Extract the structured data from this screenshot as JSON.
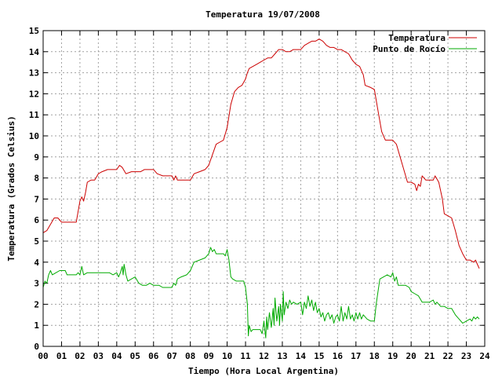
{
  "chart_data": {
    "type": "line",
    "title": "Temperatura 19/07/2008",
    "xlabel": "Tiempo (Hora Local Argentina)",
    "ylabel": "Temperatura (Grados Celsius)",
    "xlim": [
      0,
      24
    ],
    "ylim": [
      0,
      15
    ],
    "x_ticks": [
      "00",
      "01",
      "02",
      "03",
      "04",
      "05",
      "06",
      "07",
      "08",
      "09",
      "10",
      "11",
      "12",
      "13",
      "14",
      "15",
      "16",
      "17",
      "18",
      "19",
      "20",
      "21",
      "22",
      "23",
      "24"
    ],
    "y_ticks": [
      "0",
      "1",
      "2",
      "3",
      "4",
      "5",
      "6",
      "7",
      "8",
      "9",
      "10",
      "11",
      "12",
      "13",
      "14",
      "15"
    ],
    "grid": true,
    "legend_position": "top-right",
    "series": [
      {
        "name": "Temperatura",
        "color": "#cc0000",
        "points": [
          [
            0.0,
            5.4
          ],
          [
            0.2,
            5.5
          ],
          [
            0.4,
            5.8
          ],
          [
            0.6,
            6.1
          ],
          [
            0.8,
            6.1
          ],
          [
            1.0,
            5.9
          ],
          [
            1.2,
            5.9
          ],
          [
            1.4,
            5.9
          ],
          [
            1.6,
            5.9
          ],
          [
            1.8,
            5.9
          ],
          [
            2.0,
            6.9
          ],
          [
            2.1,
            7.1
          ],
          [
            2.2,
            6.9
          ],
          [
            2.3,
            7.3
          ],
          [
            2.4,
            7.8
          ],
          [
            2.6,
            7.9
          ],
          [
            2.8,
            7.9
          ],
          [
            3.0,
            8.2
          ],
          [
            3.2,
            8.3
          ],
          [
            3.5,
            8.4
          ],
          [
            3.8,
            8.4
          ],
          [
            4.0,
            8.4
          ],
          [
            4.15,
            8.6
          ],
          [
            4.3,
            8.5
          ],
          [
            4.5,
            8.2
          ],
          [
            4.8,
            8.3
          ],
          [
            5.0,
            8.3
          ],
          [
            5.3,
            8.3
          ],
          [
            5.5,
            8.4
          ],
          [
            5.8,
            8.4
          ],
          [
            6.0,
            8.4
          ],
          [
            6.2,
            8.2
          ],
          [
            6.5,
            8.1
          ],
          [
            6.8,
            8.1
          ],
          [
            7.0,
            8.1
          ],
          [
            7.1,
            7.9
          ],
          [
            7.2,
            8.1
          ],
          [
            7.3,
            7.9
          ],
          [
            7.5,
            7.9
          ],
          [
            7.8,
            7.9
          ],
          [
            8.0,
            7.9
          ],
          [
            8.2,
            8.2
          ],
          [
            8.5,
            8.3
          ],
          [
            8.8,
            8.4
          ],
          [
            9.0,
            8.6
          ],
          [
            9.2,
            9.1
          ],
          [
            9.4,
            9.6
          ],
          [
            9.6,
            9.7
          ],
          [
            9.8,
            9.8
          ],
          [
            10.0,
            10.4
          ],
          [
            10.2,
            11.5
          ],
          [
            10.4,
            12.1
          ],
          [
            10.6,
            12.3
          ],
          [
            10.8,
            12.4
          ],
          [
            11.0,
            12.7
          ],
          [
            11.1,
            13.0
          ],
          [
            11.2,
            13.2
          ],
          [
            11.4,
            13.3
          ],
          [
            11.6,
            13.4
          ],
          [
            11.8,
            13.5
          ],
          [
            12.0,
            13.6
          ],
          [
            12.2,
            13.7
          ],
          [
            12.4,
            13.7
          ],
          [
            12.6,
            13.9
          ],
          [
            12.8,
            14.1
          ],
          [
            13.0,
            14.1
          ],
          [
            13.2,
            14.0
          ],
          [
            13.4,
            14.0
          ],
          [
            13.6,
            14.1
          ],
          [
            13.8,
            14.1
          ],
          [
            14.0,
            14.1
          ],
          [
            14.2,
            14.3
          ],
          [
            14.4,
            14.4
          ],
          [
            14.6,
            14.5
          ],
          [
            14.8,
            14.5
          ],
          [
            15.0,
            14.6
          ],
          [
            15.2,
            14.5
          ],
          [
            15.4,
            14.3
          ],
          [
            15.6,
            14.2
          ],
          [
            15.8,
            14.2
          ],
          [
            16.0,
            14.1
          ],
          [
            16.2,
            14.1
          ],
          [
            16.4,
            14.0
          ],
          [
            16.6,
            13.9
          ],
          [
            16.8,
            13.6
          ],
          [
            17.0,
            13.4
          ],
          [
            17.2,
            13.3
          ],
          [
            17.4,
            12.9
          ],
          [
            17.5,
            12.4
          ],
          [
            17.8,
            12.3
          ],
          [
            18.0,
            12.2
          ],
          [
            18.2,
            11.2
          ],
          [
            18.4,
            10.2
          ],
          [
            18.6,
            9.8
          ],
          [
            18.8,
            9.8
          ],
          [
            19.0,
            9.8
          ],
          [
            19.2,
            9.6
          ],
          [
            19.4,
            9.0
          ],
          [
            19.6,
            8.4
          ],
          [
            19.8,
            7.8
          ],
          [
            20.0,
            7.8
          ],
          [
            20.2,
            7.7
          ],
          [
            20.3,
            7.4
          ],
          [
            20.4,
            7.7
          ],
          [
            20.5,
            7.6
          ],
          [
            20.6,
            8.1
          ],
          [
            20.8,
            7.9
          ],
          [
            21.0,
            7.9
          ],
          [
            21.2,
            7.9
          ],
          [
            21.3,
            8.1
          ],
          [
            21.5,
            7.8
          ],
          [
            21.7,
            7.0
          ],
          [
            21.8,
            6.3
          ],
          [
            22.0,
            6.2
          ],
          [
            22.2,
            6.1
          ],
          [
            22.4,
            5.5
          ],
          [
            22.6,
            4.8
          ],
          [
            22.8,
            4.4
          ],
          [
            23.0,
            4.1
          ],
          [
            23.2,
            4.1
          ],
          [
            23.4,
            4.0
          ],
          [
            23.5,
            4.1
          ],
          [
            23.6,
            3.9
          ],
          [
            23.7,
            3.7
          ]
        ]
      },
      {
        "name": "Punto de Rocío",
        "color": "#00aa00",
        "points": [
          [
            0.0,
            2.8
          ],
          [
            0.1,
            3.1
          ],
          [
            0.2,
            3.0
          ],
          [
            0.3,
            3.4
          ],
          [
            0.4,
            3.6
          ],
          [
            0.5,
            3.4
          ],
          [
            0.7,
            3.5
          ],
          [
            0.9,
            3.6
          ],
          [
            1.0,
            3.6
          ],
          [
            1.2,
            3.6
          ],
          [
            1.3,
            3.4
          ],
          [
            1.5,
            3.4
          ],
          [
            1.8,
            3.4
          ],
          [
            1.9,
            3.5
          ],
          [
            2.0,
            3.4
          ],
          [
            2.1,
            3.8
          ],
          [
            2.2,
            3.4
          ],
          [
            2.4,
            3.5
          ],
          [
            2.6,
            3.5
          ],
          [
            2.8,
            3.5
          ],
          [
            3.0,
            3.5
          ],
          [
            3.2,
            3.5
          ],
          [
            3.4,
            3.5
          ],
          [
            3.6,
            3.5
          ],
          [
            3.8,
            3.4
          ],
          [
            4.0,
            3.5
          ],
          [
            4.1,
            3.3
          ],
          [
            4.2,
            3.5
          ],
          [
            4.3,
            3.8
          ],
          [
            4.35,
            3.4
          ],
          [
            4.4,
            3.9
          ],
          [
            4.5,
            3.4
          ],
          [
            4.6,
            3.1
          ],
          [
            4.8,
            3.2
          ],
          [
            5.0,
            3.3
          ],
          [
            5.2,
            3.0
          ],
          [
            5.4,
            2.9
          ],
          [
            5.6,
            2.9
          ],
          [
            5.8,
            3.0
          ],
          [
            6.0,
            2.9
          ],
          [
            6.3,
            2.9
          ],
          [
            6.5,
            2.8
          ],
          [
            6.8,
            2.8
          ],
          [
            7.0,
            2.8
          ],
          [
            7.1,
            3.0
          ],
          [
            7.2,
            2.9
          ],
          [
            7.3,
            3.2
          ],
          [
            7.5,
            3.3
          ],
          [
            7.8,
            3.4
          ],
          [
            8.0,
            3.6
          ],
          [
            8.2,
            4.0
          ],
          [
            8.5,
            4.1
          ],
          [
            8.8,
            4.2
          ],
          [
            9.0,
            4.4
          ],
          [
            9.1,
            4.7
          ],
          [
            9.2,
            4.5
          ],
          [
            9.3,
            4.6
          ],
          [
            9.4,
            4.4
          ],
          [
            9.6,
            4.4
          ],
          [
            9.8,
            4.4
          ],
          [
            9.9,
            4.3
          ],
          [
            10.0,
            4.6
          ],
          [
            10.1,
            4.1
          ],
          [
            10.2,
            3.3
          ],
          [
            10.3,
            3.2
          ],
          [
            10.5,
            3.1
          ],
          [
            10.7,
            3.1
          ],
          [
            10.9,
            3.1
          ],
          [
            11.0,
            2.8
          ],
          [
            11.1,
            2.0
          ],
          [
            11.15,
            0.5
          ],
          [
            11.2,
            1.0
          ],
          [
            11.3,
            0.7
          ],
          [
            11.4,
            0.8
          ],
          [
            11.6,
            0.8
          ],
          [
            11.8,
            0.8
          ],
          [
            11.9,
            0.6
          ],
          [
            12.0,
            1.2
          ],
          [
            12.1,
            0.4
          ],
          [
            12.15,
            1.4
          ],
          [
            12.2,
            0.8
          ],
          [
            12.3,
            1.6
          ],
          [
            12.4,
            0.9
          ],
          [
            12.5,
            1.8
          ],
          [
            12.55,
            1.0
          ],
          [
            12.6,
            2.3
          ],
          [
            12.7,
            1.2
          ],
          [
            12.8,
            1.9
          ],
          [
            12.85,
            1.0
          ],
          [
            12.9,
            2.0
          ],
          [
            13.0,
            1.2
          ],
          [
            13.05,
            2.6
          ],
          [
            13.1,
            1.5
          ],
          [
            13.2,
            2.1
          ],
          [
            13.3,
            1.8
          ],
          [
            13.4,
            2.2
          ],
          [
            13.5,
            2.0
          ],
          [
            13.6,
            2.1
          ],
          [
            13.8,
            2.0
          ],
          [
            14.0,
            2.1
          ],
          [
            14.1,
            1.5
          ],
          [
            14.2,
            2.1
          ],
          [
            14.3,
            1.8
          ],
          [
            14.4,
            2.4
          ],
          [
            14.5,
            1.9
          ],
          [
            14.6,
            2.2
          ],
          [
            14.7,
            1.7
          ],
          [
            14.8,
            2.1
          ],
          [
            14.9,
            1.6
          ],
          [
            15.0,
            1.8
          ],
          [
            15.1,
            1.4
          ],
          [
            15.2,
            1.6
          ],
          [
            15.3,
            1.2
          ],
          [
            15.4,
            1.5
          ],
          [
            15.5,
            1.6
          ],
          [
            15.6,
            1.3
          ],
          [
            15.7,
            1.5
          ],
          [
            15.8,
            1.1
          ],
          [
            15.9,
            1.4
          ],
          [
            16.0,
            1.5
          ],
          [
            16.1,
            1.2
          ],
          [
            16.2,
            1.9
          ],
          [
            16.3,
            1.2
          ],
          [
            16.4,
            1.6
          ],
          [
            16.5,
            1.3
          ],
          [
            16.6,
            1.9
          ],
          [
            16.7,
            1.3
          ],
          [
            16.8,
            1.5
          ],
          [
            16.9,
            1.2
          ],
          [
            17.0,
            1.6
          ],
          [
            17.1,
            1.3
          ],
          [
            17.2,
            1.6
          ],
          [
            17.3,
            1.3
          ],
          [
            17.4,
            1.5
          ],
          [
            17.6,
            1.3
          ],
          [
            17.8,
            1.2
          ],
          [
            18.0,
            1.2
          ],
          [
            18.1,
            2.0
          ],
          [
            18.2,
            2.6
          ],
          [
            18.3,
            3.2
          ],
          [
            18.5,
            3.3
          ],
          [
            18.7,
            3.4
          ],
          [
            18.9,
            3.3
          ],
          [
            19.0,
            3.5
          ],
          [
            19.1,
            3.1
          ],
          [
            19.2,
            3.3
          ],
          [
            19.3,
            2.9
          ],
          [
            19.5,
            2.9
          ],
          [
            19.7,
            2.9
          ],
          [
            19.9,
            2.8
          ],
          [
            20.0,
            2.6
          ],
          [
            20.2,
            2.5
          ],
          [
            20.4,
            2.4
          ],
          [
            20.6,
            2.1
          ],
          [
            20.8,
            2.1
          ],
          [
            21.0,
            2.1
          ],
          [
            21.2,
            2.2
          ],
          [
            21.3,
            2.0
          ],
          [
            21.4,
            2.1
          ],
          [
            21.6,
            1.9
          ],
          [
            21.8,
            1.9
          ],
          [
            22.0,
            1.8
          ],
          [
            22.2,
            1.8
          ],
          [
            22.4,
            1.5
          ],
          [
            22.6,
            1.3
          ],
          [
            22.8,
            1.1
          ],
          [
            23.0,
            1.2
          ],
          [
            23.2,
            1.3
          ],
          [
            23.3,
            1.2
          ],
          [
            23.4,
            1.4
          ],
          [
            23.5,
            1.3
          ],
          [
            23.6,
            1.4
          ],
          [
            23.7,
            1.3
          ]
        ]
      }
    ]
  }
}
